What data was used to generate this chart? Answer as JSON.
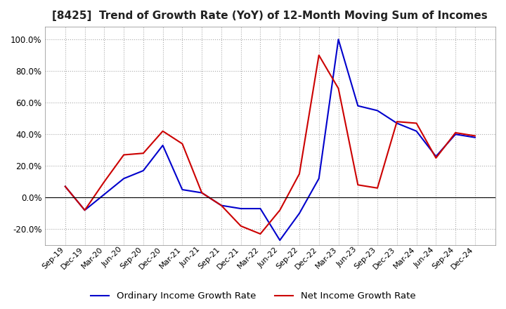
{
  "title": "[8425]  Trend of Growth Rate (YoY) of 12-Month Moving Sum of Incomes",
  "title_fontsize": 11,
  "ylim": [
    -30,
    108
  ],
  "yticks": [
    -20,
    0,
    20,
    40,
    60,
    80,
    100
  ],
  "background_color": "#ffffff",
  "grid_color": "#aaaaaa",
  "x_labels": [
    "Sep-19",
    "Dec-19",
    "Mar-20",
    "Jun-20",
    "Sep-20",
    "Dec-20",
    "Mar-21",
    "Jun-21",
    "Sep-21",
    "Dec-21",
    "Mar-22",
    "Jun-22",
    "Sep-22",
    "Dec-22",
    "Mar-23",
    "Jun-23",
    "Sep-23",
    "Dec-23",
    "Mar-24",
    "Jun-24",
    "Sep-24",
    "Dec-24"
  ],
  "ordinary_income": [
    7,
    -8,
    2,
    12,
    17,
    33,
    5,
    3,
    -5,
    -7,
    -7,
    -27,
    -10,
    12,
    100,
    58,
    55,
    47,
    42,
    26,
    40,
    38
  ],
  "net_income": [
    7,
    -8,
    10,
    27,
    28,
    42,
    34,
    3,
    -5,
    -18,
    -23,
    -8,
    15,
    90,
    69,
    8,
    6,
    48,
    47,
    25,
    41,
    39
  ],
  "ordinary_color": "#0000cc",
  "net_color": "#cc0000",
  "line_width": 1.5,
  "legend_ordinary_label": "Ordinary Income Growth Rate",
  "legend_net_label": "Net Income Growth Rate",
  "legend_fontsize": 9.5
}
